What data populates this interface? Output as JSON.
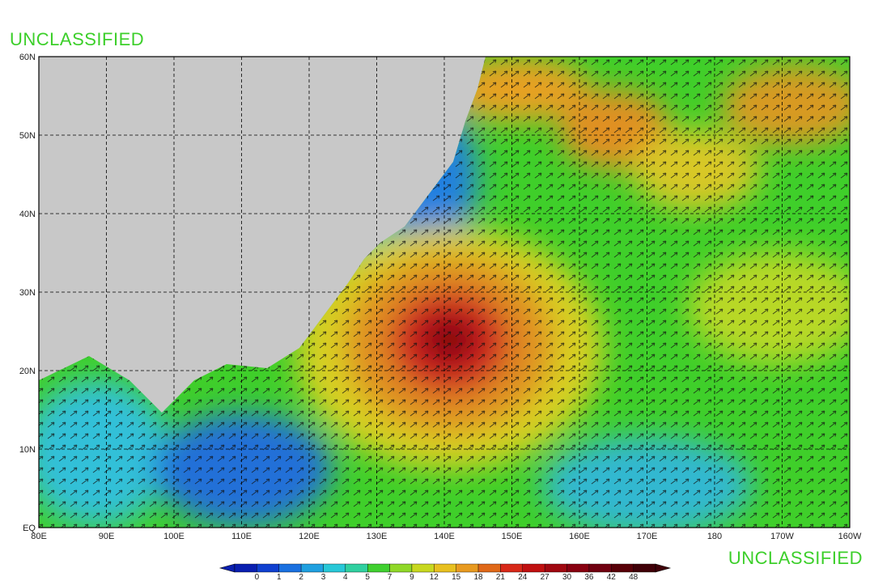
{
  "header": {
    "classification_top": "UNCLASSIFIED",
    "classification_bottom": "UNCLASSIFIED"
  },
  "map": {
    "lat_labels": [
      "60N",
      "50N",
      "40N",
      "30N",
      "20N",
      "10N",
      "EQ"
    ],
    "lon_labels": [
      "80E",
      "90E",
      "100E",
      "110E",
      "120E",
      "130E",
      "140E",
      "150E",
      "160E",
      "170E",
      "180",
      "170W",
      "160W"
    ]
  },
  "colorbar": {
    "labels": [
      "0",
      "1",
      "2",
      "3",
      "4",
      "5",
      "7",
      "9",
      "12",
      "15",
      "18",
      "21",
      "24",
      "27",
      "30",
      "36",
      "42",
      "48"
    ]
  }
}
